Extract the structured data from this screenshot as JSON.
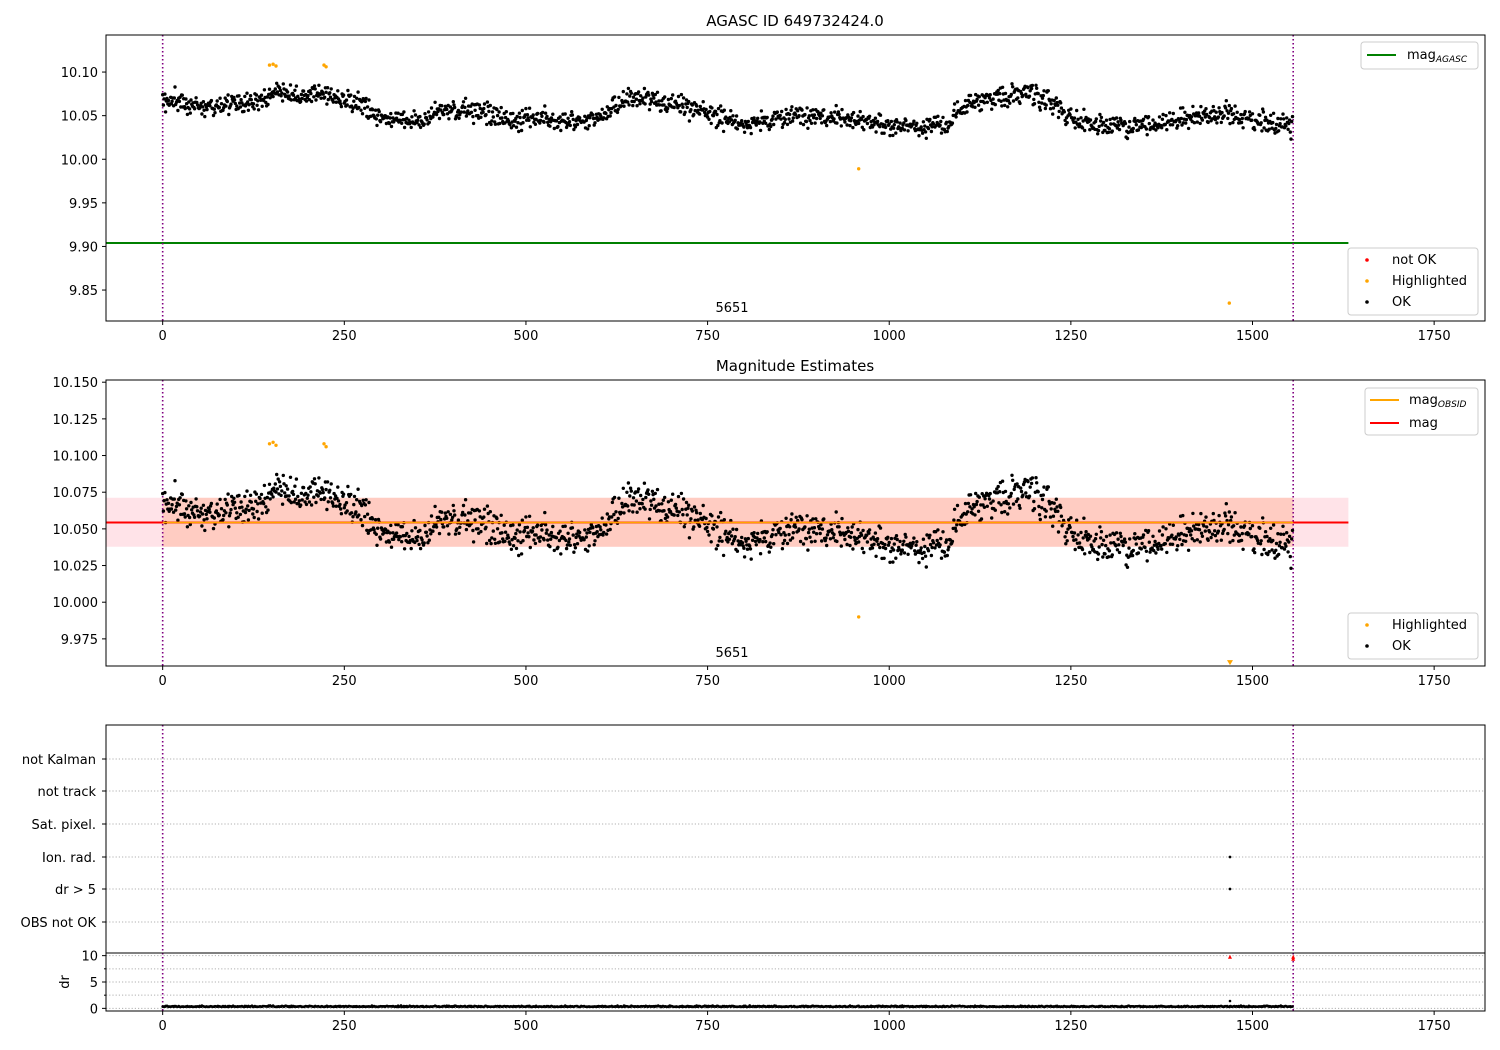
{
  "colors": {
    "ok": "#000000",
    "highlighted": "#ffa500",
    "not_ok": "#ff0000",
    "agasc_line": "#008000",
    "mag_line": "#ff0000",
    "obsid_line": "#ffa500",
    "obsid_band": "#ffa07a",
    "mag_band": "#ffc0cb",
    "obs_boundary": "#800080",
    "grid": "#b0b0b0"
  },
  "chart_data": [
    {
      "type": "scatter",
      "title": "AGASC ID 649732424.0",
      "xlim": [
        -78,
        1820
      ],
      "ylim": [
        9.8145,
        10.1425
      ],
      "xticks": [
        0,
        250,
        500,
        750,
        1000,
        1250,
        1500,
        1750
      ],
      "xtick_labels": [
        "0",
        "250",
        "500",
        "750",
        "1000",
        "1250",
        "1500",
        "1750"
      ],
      "yticks": [
        9.85,
        9.9,
        9.95,
        10.0,
        10.05,
        10.1
      ],
      "ytick_labels": [
        "9.85",
        "9.90",
        "9.95",
        "10.00",
        "10.05",
        "10.10"
      ],
      "obs_boundaries": [
        0,
        1556
      ],
      "obs_label": {
        "text": "5651",
        "x": 778
      },
      "hlines": [
        {
          "name": "mag_AGASC",
          "y": 9.904,
          "x_range": [
            -78,
            1632
          ],
          "color": "#008000"
        }
      ],
      "legend_lines": [
        {
          "label": "mag",
          "subscript": "AGASC",
          "color": "#008000"
        }
      ],
      "legend_lines_position": "upper right",
      "legend_points": [
        {
          "label": "not OK",
          "color": "#ff0000"
        },
        {
          "label": "Highlighted",
          "color": "#ffa500"
        },
        {
          "label": "OK",
          "color": "#000000"
        }
      ],
      "legend_points_position": "lower right",
      "series": [
        {
          "name": "OK",
          "color": "#000000",
          "generated": true,
          "x_range": [
            0,
            1555
          ],
          "n_points": 1556
        },
        {
          "name": "Highlighted",
          "color": "#ffa500",
          "points": [
            [
              147,
              10.108
            ],
            [
              152,
              10.109
            ],
            [
              156,
              10.107
            ],
            [
              222,
              10.108
            ],
            [
              225,
              10.106
            ],
            [
              958,
              9.989
            ],
            [
              1468,
              9.835
            ]
          ]
        }
      ]
    },
    {
      "type": "scatter",
      "title": "Magnitude Estimates",
      "xlim": [
        -78,
        1820
      ],
      "ylim": [
        9.9565,
        10.1515
      ],
      "xticks": [
        0,
        250,
        500,
        750,
        1000,
        1250,
        1500,
        1750
      ],
      "xtick_labels": [
        "0",
        "250",
        "500",
        "750",
        "1000",
        "1250",
        "1500",
        "1750"
      ],
      "yticks": [
        9.975,
        10.0,
        10.025,
        10.05,
        10.075,
        10.1,
        10.125,
        10.15
      ],
      "ytick_labels": [
        "9.975",
        "10.000",
        "10.025",
        "10.050",
        "10.075",
        "10.100",
        "10.125",
        "10.150"
      ],
      "obs_boundaries": [
        0,
        1556
      ],
      "obs_label": {
        "text": "5651",
        "x": 778
      },
      "bands": [
        {
          "name": "mag",
          "y_range": [
            10.0378,
            10.0712
          ],
          "x_range": [
            -78,
            1632
          ],
          "color": "#ffc0cb",
          "alpha": 0.45
        },
        {
          "name": "mag_OBSID",
          "y_range": [
            10.0378,
            10.0712
          ],
          "x_range": [
            0,
            1556
          ],
          "color": "#ffa07a",
          "alpha": 0.35
        }
      ],
      "hlines": [
        {
          "name": "mag",
          "y": 10.0543,
          "x_range": [
            -78,
            1632
          ],
          "color": "#ff0000"
        },
        {
          "name": "mag_OBSID",
          "y": 10.0543,
          "x_range": [
            0,
            1556
          ],
          "color": "#ffa500"
        }
      ],
      "legend_lines": [
        {
          "label": "mag",
          "subscript": "OBSID",
          "color": "#ffa500"
        },
        {
          "label": "mag",
          "subscript": "",
          "color": "#ff0000"
        }
      ],
      "legend_lines_position": "upper right",
      "legend_points": [
        {
          "label": "Highlighted",
          "color": "#ffa500"
        },
        {
          "label": "OK",
          "color": "#000000"
        }
      ],
      "legend_points_position": "lower right",
      "series": [
        {
          "name": "OK",
          "color": "#000000",
          "generated": true,
          "x_range": [
            0,
            1555
          ],
          "n_points": 1556
        },
        {
          "name": "Highlighted",
          "color": "#ffa500",
          "points": [
            [
              147,
              10.108
            ],
            [
              152,
              10.109
            ],
            [
              156,
              10.107
            ],
            [
              222,
              10.108
            ],
            [
              225,
              10.106
            ],
            [
              958,
              9.99
            ]
          ]
        },
        {
          "name": "Highlighted (below axis)",
          "color": "#ffa500",
          "marker": "triangle-down",
          "points": [
            [
              1469,
              9.9585
            ]
          ]
        }
      ]
    },
    {
      "type": "scatter",
      "title": "",
      "xlim": [
        -78,
        1820
      ],
      "yticks": [
        "not Kalman",
        "not track",
        "Sat. pixel.",
        "Ion. rad.",
        "dr > 5",
        "OBS not OK"
      ],
      "obs_boundaries": [
        0,
        1556
      ],
      "grid": "horizontal dotted",
      "flag_points": [
        {
          "flag": "Ion. rad.",
          "x": 1469,
          "color": "#000000"
        },
        {
          "flag": "dr > 5",
          "x": 1469,
          "color": "#000000"
        }
      ]
    },
    {
      "type": "scatter",
      "title": "",
      "xlim": [
        -78,
        1820
      ],
      "ylim": [
        -0.5,
        10.5
      ],
      "ylabel": "dr",
      "xticks": [
        0,
        250,
        500,
        750,
        1000,
        1250,
        1500,
        1750
      ],
      "xtick_labels": [
        "0",
        "250",
        "500",
        "750",
        "1000",
        "1250",
        "1500",
        "1750"
      ],
      "yticks": [
        0,
        5,
        10
      ],
      "ytick_labels": [
        "0",
        "5",
        "10"
      ],
      "obs_boundaries": [
        0,
        1556
      ],
      "series": [
        {
          "name": "dr",
          "color": "#000000",
          "generated": true,
          "x_range": [
            0,
            1555
          ],
          "n_points": 1556
        },
        {
          "name": "dr outliers",
          "color": "#000000",
          "points": [
            [
              1469,
              1.4
            ]
          ]
        },
        {
          "name": "dr clipped",
          "color": "#ff0000",
          "marker": "triangle-up",
          "points": [
            [
              1469,
              9.8
            ],
            [
              1556,
              9.8
            ],
            [
              1556,
              9.4
            ]
          ]
        }
      ]
    }
  ]
}
